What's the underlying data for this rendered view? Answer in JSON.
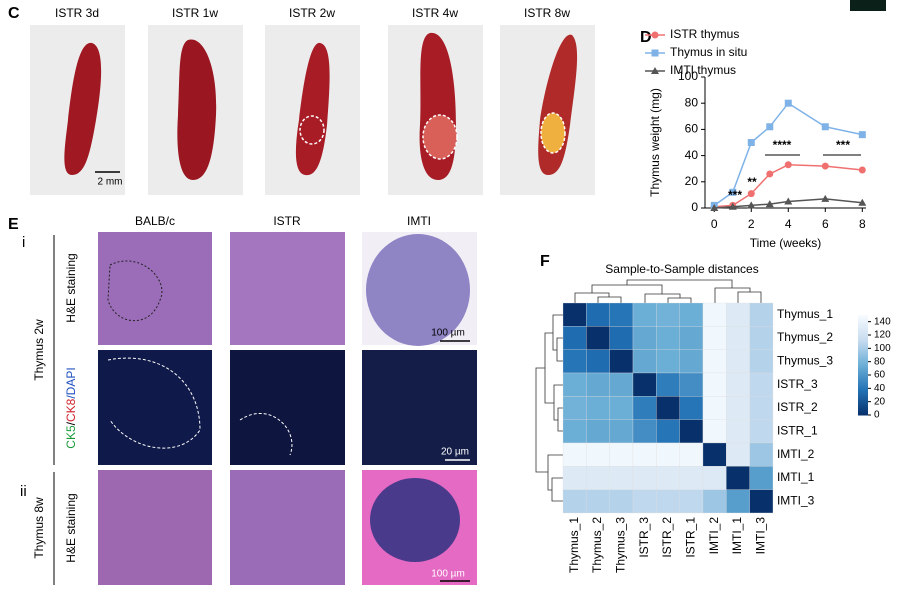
{
  "labels": {
    "c": "C",
    "d": "D",
    "e": "E",
    "f": "F"
  },
  "panel_c": {
    "titles": [
      "ISTR 3d",
      "ISTR 1w",
      "ISTR 2w",
      "ISTR 4w",
      "ISTR 8w"
    ],
    "scale_bar": "2 mm"
  },
  "panel_e": {
    "columns": [
      "BALB/c",
      "ISTR",
      "IMTI"
    ],
    "rows": [
      {
        "marker": "i",
        "group": "Thymus 2w"
      },
      {
        "marker": "ii",
        "group": "Thymus 8w"
      }
    ],
    "he_label": "H&E staining",
    "if_label": [
      "CK5",
      "/",
      "CK8",
      "/DAPI"
    ],
    "scale_bars": [
      "100 µm",
      "20 µm",
      "100 µm"
    ]
  },
  "chart_data": [
    {
      "type": "line",
      "x_label": "Time (weeks)",
      "y_label": "Thymus weight (mg)",
      "x": [
        0,
        1,
        2,
        3,
        4,
        6,
        8
      ],
      "xlim": [
        -0.5,
        8.2
      ],
      "xticks": [
        0,
        2,
        4,
        6,
        8
      ],
      "ylim": [
        0,
        100
      ],
      "yticks": [
        0,
        20,
        40,
        60,
        80,
        100
      ],
      "series": [
        {
          "name": "ISTR thymus",
          "color": "#f07070",
          "marker": "circle",
          "values": [
            1,
            2,
            11,
            26,
            33,
            32,
            29
          ]
        },
        {
          "name": "Thymus in situ",
          "color": "#7fb3e8",
          "marker": "square",
          "values": [
            2,
            12,
            50,
            62,
            80,
            62,
            56
          ]
        },
        {
          "name": "IMTI thymus",
          "color": "#555555",
          "marker": "triangle",
          "values": [
            0,
            1,
            2,
            3,
            5,
            7,
            4
          ]
        }
      ],
      "annotations": [
        "***",
        "**",
        "****",
        "***"
      ]
    },
    {
      "type": "heatmap",
      "title": "Sample-to-Sample distances",
      "rows": [
        "Thymus_1",
        "Thymus_2",
        "Thymus_3",
        "ISTR_3",
        "ISTR_2",
        "ISTR_1",
        "IMTI_2",
        "IMTI_1",
        "IMTI_3"
      ],
      "columns": [
        "Thymus_1",
        "Thymus_2",
        "Thymus_3",
        "ISTR_3",
        "ISTR_2",
        "ISTR_1",
        "IMTI_2",
        "IMTI_1",
        "IMTI_3"
      ],
      "values": [
        [
          0,
          35,
          40,
          75,
          78,
          75,
          145,
          130,
          105
        ],
        [
          35,
          0,
          35,
          72,
          75,
          72,
          145,
          130,
          105
        ],
        [
          40,
          35,
          0,
          72,
          75,
          72,
          145,
          130,
          105
        ],
        [
          75,
          72,
          72,
          0,
          45,
          55,
          145,
          130,
          110
        ],
        [
          78,
          75,
          75,
          45,
          0,
          40,
          145,
          130,
          110
        ],
        [
          75,
          72,
          72,
          55,
          40,
          0,
          145,
          130,
          110
        ],
        [
          145,
          145,
          145,
          145,
          145,
          145,
          0,
          130,
          95
        ],
        [
          130,
          130,
          130,
          130,
          130,
          130,
          130,
          0,
          65
        ],
        [
          105,
          105,
          105,
          110,
          110,
          110,
          95,
          65,
          0
        ]
      ],
      "clim": [
        0,
        150
      ],
      "cticks": [
        0,
        20,
        40,
        60,
        80,
        100,
        120,
        140
      ],
      "colormap": [
        "#08306b",
        "#2171b5",
        "#6baed6",
        "#c6dbef",
        "#f7fbff"
      ]
    }
  ]
}
